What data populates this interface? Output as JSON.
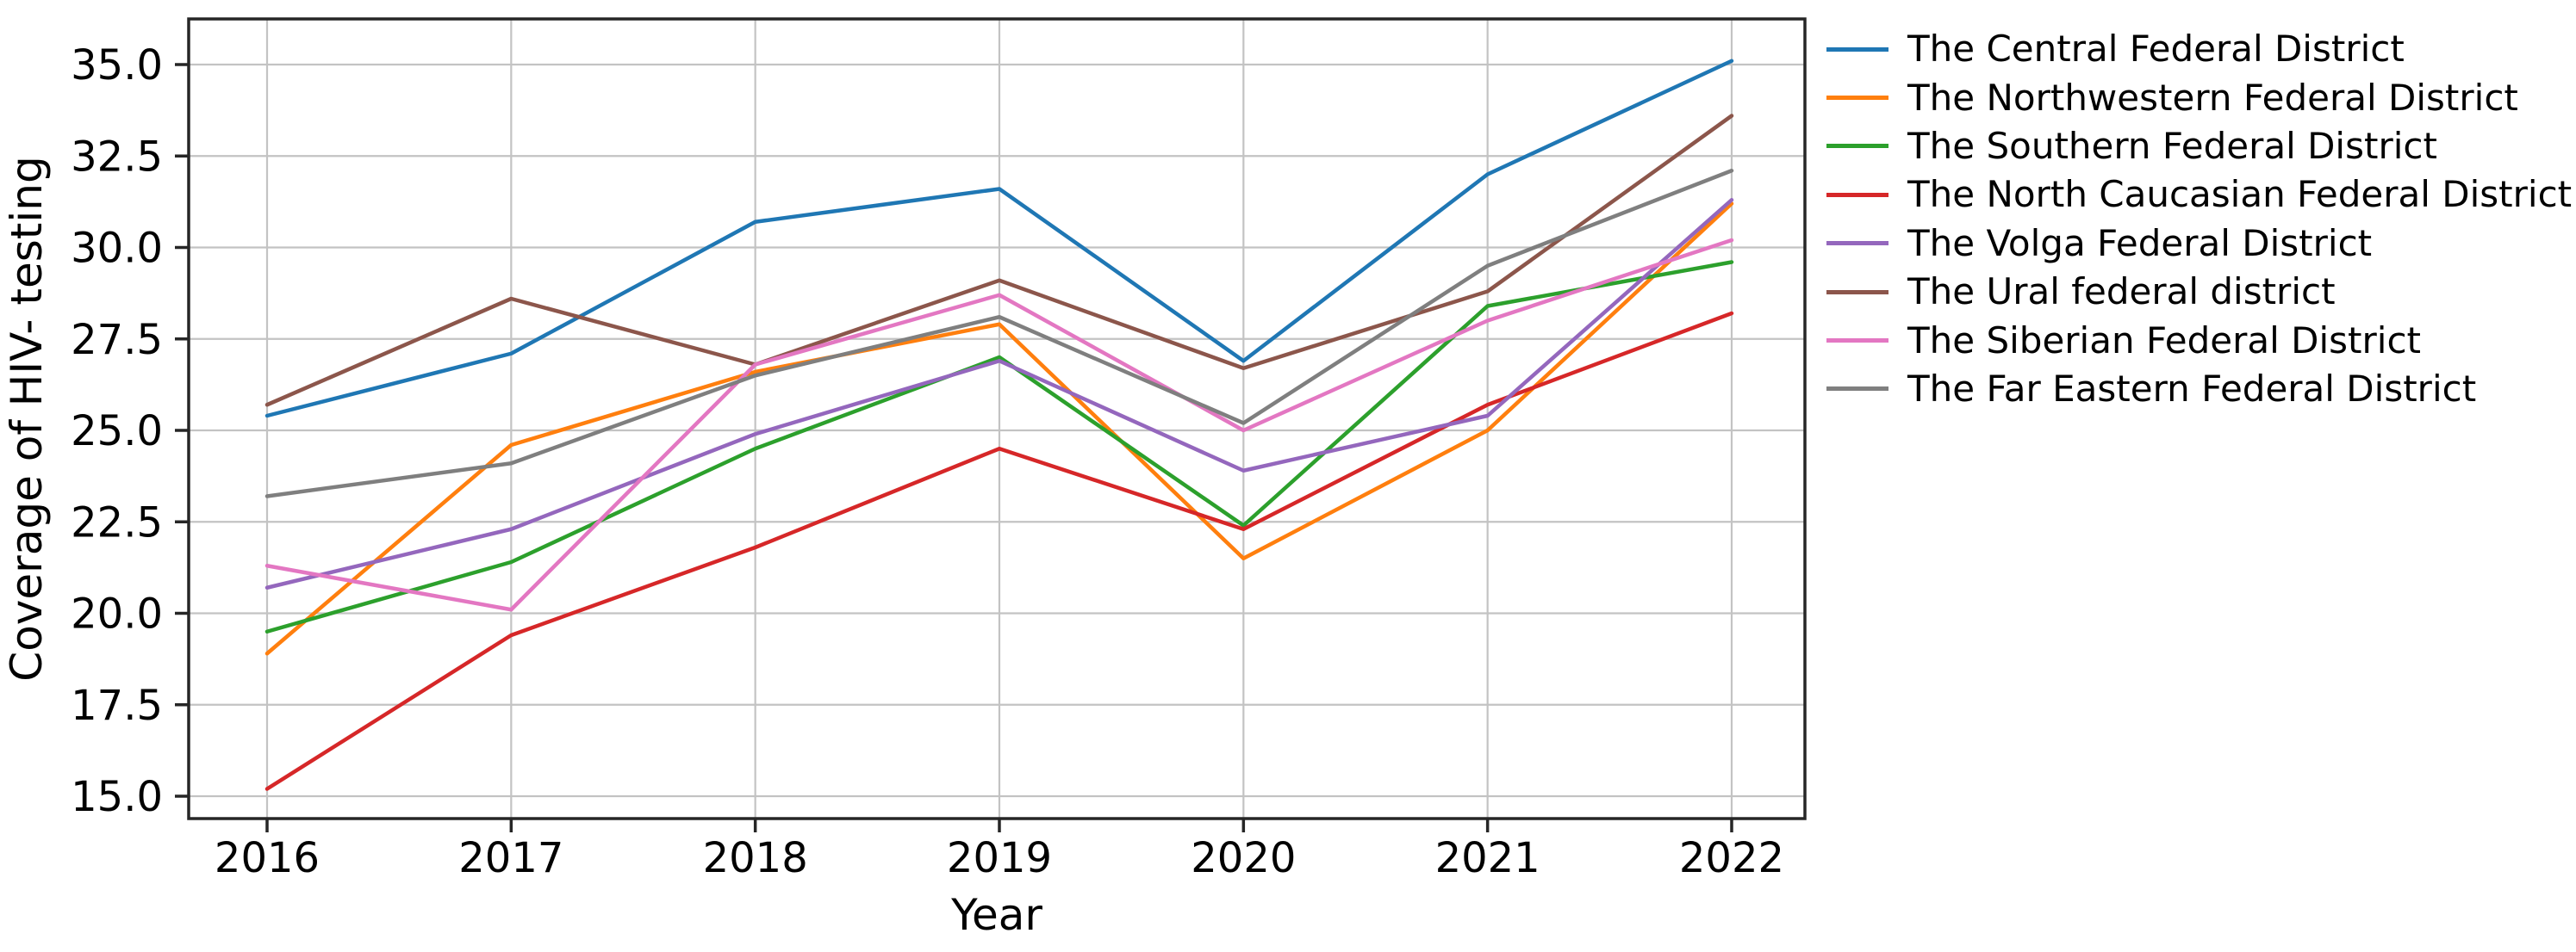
{
  "chart_data": {
    "type": "line",
    "title": "",
    "xlabel": "Year",
    "ylabel": "Coverage of HIV- testing",
    "x": [
      2016,
      2017,
      2018,
      2019,
      2020,
      2021,
      2022
    ],
    "x_tick_labels": [
      "2016",
      "2017",
      "2018",
      "2019",
      "2020",
      "2021",
      "2022"
    ],
    "y_ticks": [
      15.0,
      17.5,
      20.0,
      22.5,
      25.0,
      27.5,
      30.0,
      32.5,
      35.0
    ],
    "y_tick_labels": [
      "15.0",
      "17.5",
      "20.0",
      "22.5",
      "25.0",
      "27.5",
      "30.0",
      "32.5",
      "35.0"
    ],
    "xlim": [
      2015.68,
      2022.3
    ],
    "ylim": [
      14.4,
      36.2
    ],
    "grid": true,
    "legend_position": "right",
    "grid_color": "#c3c3c3",
    "axis_color": "#262626",
    "text_color": "#000000",
    "series": [
      {
        "name": "The Central Federal District",
        "color": "#1f77b4",
        "values": [
          25.4,
          27.1,
          30.7,
          31.6,
          26.9,
          32.0,
          35.1
        ]
      },
      {
        "name": "The Northwestern Federal District",
        "color": "#ff7f0e",
        "values": [
          18.9,
          24.6,
          26.6,
          27.9,
          21.5,
          25.0,
          31.2
        ]
      },
      {
        "name": "The Southern Federal District",
        "color": "#2ca02c",
        "values": [
          19.5,
          21.4,
          24.5,
          27.0,
          22.4,
          28.4,
          29.6
        ]
      },
      {
        "name": "The North Caucasian Federal District",
        "color": "#d62728",
        "values": [
          15.2,
          19.4,
          21.8,
          24.5,
          22.3,
          25.7,
          28.2
        ]
      },
      {
        "name": "The Volga Federal District",
        "color": "#9467bd",
        "values": [
          20.7,
          22.3,
          24.9,
          26.9,
          23.9,
          25.4,
          31.3
        ]
      },
      {
        "name": "The Ural federal district",
        "color": "#8c564b",
        "values": [
          25.7,
          28.6,
          26.8,
          29.1,
          26.7,
          28.8,
          33.6
        ]
      },
      {
        "name": "The Siberian Federal District",
        "color": "#e377c2",
        "values": [
          21.3,
          20.1,
          26.8,
          28.7,
          25.0,
          28.0,
          30.2
        ]
      },
      {
        "name": "The Far Eastern Federal District",
        "color": "#7f7f7f",
        "values": [
          23.2,
          24.1,
          26.5,
          28.1,
          25.2,
          29.5,
          32.1
        ]
      }
    ]
  }
}
